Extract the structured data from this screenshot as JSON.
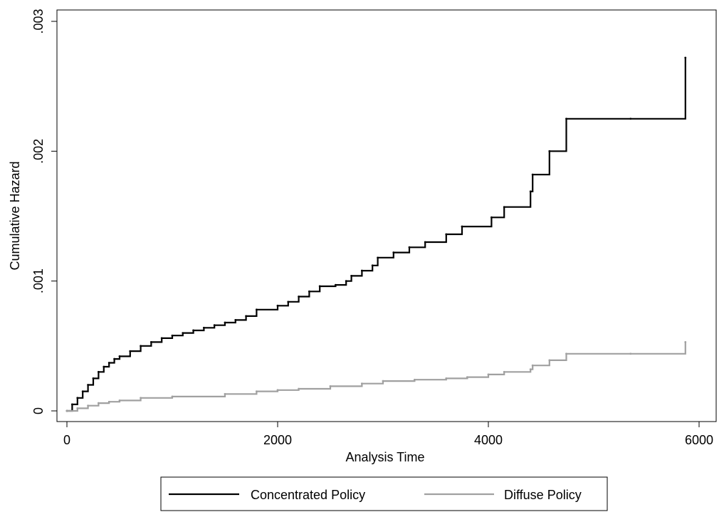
{
  "chart_data": {
    "type": "line",
    "title": "",
    "xlabel": "Analysis Time",
    "ylabel": "Cumulative Hazard",
    "xlim": [
      0,
      6000
    ],
    "ylim": [
      0,
      0.003
    ],
    "x_ticks": [
      0,
      2000,
      4000,
      6000
    ],
    "x_tick_labels": [
      "0",
      "2000",
      "4000",
      "6000"
    ],
    "y_ticks": [
      0,
      0.001,
      0.002,
      0.003
    ],
    "y_tick_labels": [
      "0",
      ".001",
      ".002",
      ".003"
    ],
    "grid": false,
    "legend_position": "bottom",
    "step": true,
    "series": [
      {
        "name": "Concentrated Policy",
        "color": "#000000",
        "points": [
          [
            0,
            0.0
          ],
          [
            50,
            5e-05
          ],
          [
            100,
            0.0001
          ],
          [
            150,
            0.00015
          ],
          [
            200,
            0.0002
          ],
          [
            250,
            0.00025
          ],
          [
            300,
            0.0003
          ],
          [
            350,
            0.00034
          ],
          [
            400,
            0.00037
          ],
          [
            450,
            0.0004
          ],
          [
            500,
            0.00042
          ],
          [
            600,
            0.00046
          ],
          [
            700,
            0.0005
          ],
          [
            800,
            0.00053
          ],
          [
            900,
            0.00056
          ],
          [
            1000,
            0.00058
          ],
          [
            1100,
            0.0006
          ],
          [
            1200,
            0.00062
          ],
          [
            1300,
            0.00064
          ],
          [
            1400,
            0.00066
          ],
          [
            1500,
            0.00068
          ],
          [
            1600,
            0.0007
          ],
          [
            1700,
            0.00073
          ],
          [
            1800,
            0.00078
          ],
          [
            2000,
            0.00081
          ],
          [
            2100,
            0.00084
          ],
          [
            2200,
            0.00088
          ],
          [
            2300,
            0.00092
          ],
          [
            2400,
            0.00096
          ],
          [
            2550,
            0.00097
          ],
          [
            2650,
            0.001
          ],
          [
            2700,
            0.00104
          ],
          [
            2800,
            0.00108
          ],
          [
            2900,
            0.00112
          ],
          [
            2950,
            0.00118
          ],
          [
            3100,
            0.00122
          ],
          [
            3250,
            0.00126
          ],
          [
            3400,
            0.0013
          ],
          [
            3600,
            0.00136
          ],
          [
            3750,
            0.00142
          ],
          [
            4030,
            0.00149
          ],
          [
            4150,
            0.00157
          ],
          [
            4400,
            0.00169
          ],
          [
            4420,
            0.00182
          ],
          [
            4580,
            0.002
          ],
          [
            4740,
            0.00225
          ],
          [
            5350,
            0.00225
          ],
          [
            5870,
            0.00272
          ]
        ]
      },
      {
        "name": "Diffuse Policy",
        "color": "#a0a0a0",
        "points": [
          [
            0,
            0.0
          ],
          [
            100,
            2e-05
          ],
          [
            200,
            4e-05
          ],
          [
            300,
            6e-05
          ],
          [
            400,
            7e-05
          ],
          [
            500,
            8e-05
          ],
          [
            700,
            0.0001
          ],
          [
            1000,
            0.00011
          ],
          [
            1500,
            0.00013
          ],
          [
            1800,
            0.00015
          ],
          [
            2000,
            0.00016
          ],
          [
            2200,
            0.00017
          ],
          [
            2500,
            0.00019
          ],
          [
            2800,
            0.00021
          ],
          [
            3000,
            0.00023
          ],
          [
            3300,
            0.00024
          ],
          [
            3600,
            0.00025
          ],
          [
            3800,
            0.00026
          ],
          [
            4000,
            0.00028
          ],
          [
            4150,
            0.0003
          ],
          [
            4400,
            0.00032
          ],
          [
            4420,
            0.00035
          ],
          [
            4580,
            0.00039
          ],
          [
            4740,
            0.00044
          ],
          [
            5350,
            0.00044
          ],
          [
            5870,
            0.00053
          ]
        ]
      }
    ]
  }
}
